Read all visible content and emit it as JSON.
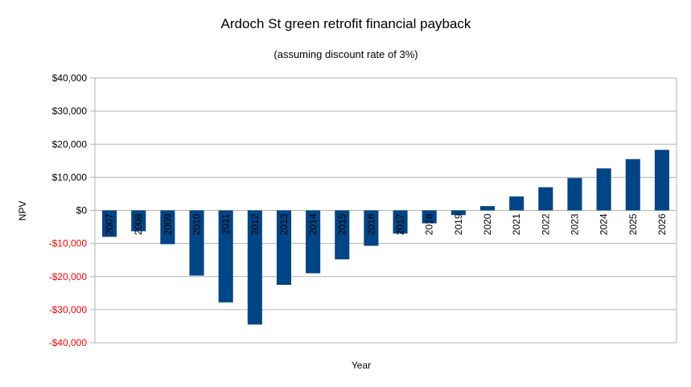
{
  "chart_data": {
    "type": "bar",
    "title": "Ardoch St green retrofit financial payback",
    "subtitle": "(assuming discount rate of 3%)",
    "xlabel": "Year",
    "ylabel": "NPV",
    "ylim": [
      -40000,
      40000
    ],
    "y_ticks": [
      40000,
      30000,
      20000,
      10000,
      0,
      -10000,
      -20000,
      -30000,
      -40000
    ],
    "y_tick_labels": [
      "$40,000",
      "$30,000",
      "$20,000",
      "$10,000",
      "$0",
      "-$10,000",
      "-$20,000",
      "-$30,000",
      "-$40,000"
    ],
    "negative_tick_color": "#ff0000",
    "positive_tick_color": "#000000",
    "bar_color": "#004586",
    "grid": true,
    "legend": "none",
    "categories": [
      "2007",
      "2008",
      "2009",
      "2010",
      "2011",
      "2012",
      "2013",
      "2014",
      "2015",
      "2016",
      "2017",
      "2018",
      "2019",
      "2020",
      "2021",
      "2022",
      "2023",
      "2024",
      "2025",
      "2026"
    ],
    "values": [
      -8000,
      -6300,
      -10200,
      -19700,
      -27800,
      -34500,
      -22500,
      -19000,
      -14800,
      -10700,
      -7000,
      -3900,
      -1400,
      1300,
      4200,
      7000,
      9800,
      12700,
      15500,
      18300
    ]
  }
}
